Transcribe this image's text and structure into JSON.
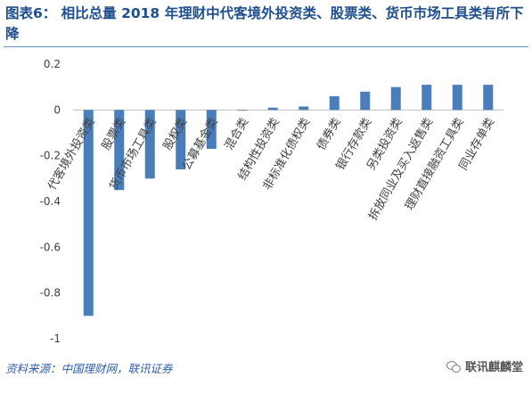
{
  "title": "图表6：  相比总量 2018 年理财中代客境外投资类、股票类、货币市场工具类有所下降",
  "source": "资料来源：中国理财网，联讯证券",
  "watermark": "联讯麒麟堂",
  "chart_data": {
    "type": "bar",
    "categories": [
      "代客境外投资类",
      "股票类",
      "货币市场工具类",
      "股权类",
      "公募基金类",
      "混合类",
      "结构性投资类",
      "非标准化债权类",
      "债券类",
      "银行存款类",
      "另类投资类",
      "拆放同业及买入返售类",
      "理财直接融资工具类",
      "同业存单类"
    ],
    "values": [
      -0.9,
      -0.35,
      -0.3,
      -0.26,
      -0.17,
      0.0,
      0.01,
      0.015,
      0.06,
      0.08,
      0.1,
      0.11,
      0.11,
      0.11
    ],
    "yticks": [
      "0.2",
      "0",
      "-0.2",
      "-0.4",
      "-0.6",
      "-0.8",
      "-1"
    ],
    "ylim": [
      -1,
      0.2
    ],
    "bar_color": "#4a7ebb",
    "grid": false,
    "legend": false
  }
}
